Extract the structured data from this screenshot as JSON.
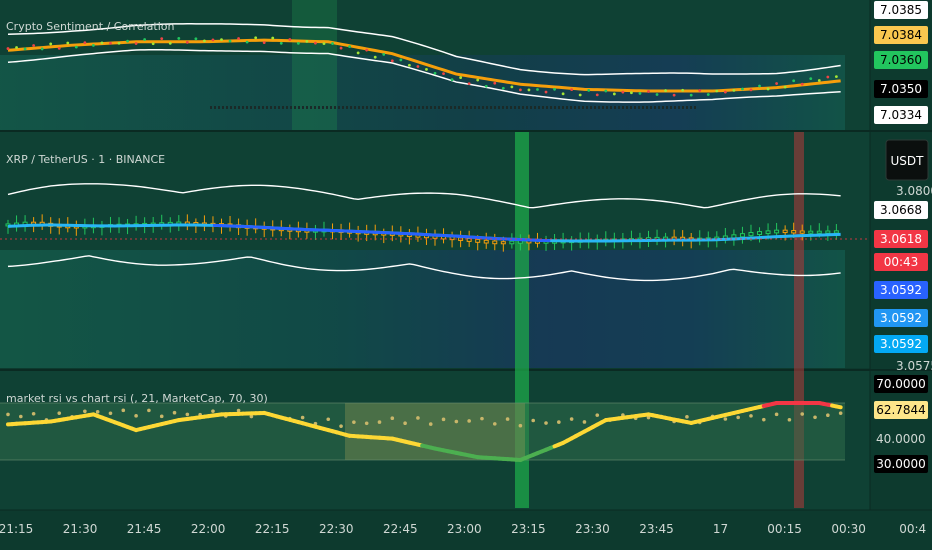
{
  "panes": {
    "top": {
      "title": "Crypto Sentiment / Correlation",
      "price_pills": [
        {
          "text": "7.0385",
          "bg": "#ffffff",
          "fg": "#000000"
        },
        {
          "text": "7.0384",
          "bg": "#f9c74f",
          "fg": "#000000"
        },
        {
          "text": "7.0360",
          "bg": "#22c55e",
          "fg": "#000000"
        },
        {
          "text": "7.0350",
          "bg": "#000000",
          "fg": "#ffffff"
        },
        {
          "text": "7.0334",
          "bg": "#ffffff",
          "fg": "#000000"
        }
      ]
    },
    "main": {
      "title": "XRP / TetherUS · 1 · BINANCE",
      "currency_button": "USDT",
      "axis_top_label": "3.0800",
      "axis_bottom_label": "3.0575",
      "price_pills": [
        {
          "text": "3.0668",
          "bg": "#ffffff",
          "fg": "#000000"
        },
        {
          "text": "3.0618",
          "bg": "#f23645",
          "fg": "#ffffff"
        },
        {
          "text": "00:43",
          "bg": "#f23645",
          "fg": "#ffffff"
        },
        {
          "text": "3.0592",
          "bg": "#2962ff",
          "fg": "#ffffff"
        },
        {
          "text": "3.0592",
          "bg": "#2196f3",
          "fg": "#ffffff"
        },
        {
          "text": "3.0592",
          "bg": "#03a9f4",
          "fg": "#ffffff"
        }
      ]
    },
    "rsi": {
      "title": "market rsi vs chart rsi (, 21, MarketCap, 70, 30)",
      "axis_label": "40.0000",
      "price_pills": [
        {
          "text": "70.0000",
          "bg": "#000000",
          "fg": "#ffffff"
        },
        {
          "text": "62.7844",
          "bg": "#fde68a",
          "fg": "#000000"
        },
        {
          "text": "30.0000",
          "bg": "#000000",
          "fg": "#ffffff"
        }
      ]
    }
  },
  "time_axis": {
    "labels": [
      "21:15",
      "21:30",
      "21:45",
      "22:00",
      "22:15",
      "22:30",
      "22:45",
      "23:00",
      "23:15",
      "23:30",
      "23:45",
      "17",
      "00:15",
      "00:30",
      "00:4"
    ]
  },
  "chart_data": [
    {
      "type": "line",
      "title": "Crypto Sentiment / Correlation",
      "x_minutes_from_2115": [
        0,
        15,
        30,
        45,
        60,
        75,
        90,
        105,
        120,
        135,
        150,
        165,
        180,
        195
      ],
      "series": [
        {
          "values": [
            7.0378,
            7.038,
            7.0382,
            7.0383,
            7.0383,
            7.0381,
            7.0372,
            7.036,
            7.0354,
            7.0352,
            7.0352,
            7.0352,
            7.0356,
            7.0362
          ]
        },
        {
          "values": [
            7.0377,
            7.038,
            7.0382,
            7.0382,
            7.0383,
            7.0382,
            7.0375,
            7.0363,
            7.0357,
            7.0354,
            7.0353,
            7.0353,
            7.0355,
            7.0359
          ]
        }
      ],
      "colors": {
        "price": "#9ccc65",
        "ma": "#f59e0b",
        "bands": "#ffffff"
      }
    },
    {
      "type": "line",
      "title": "XRP / TetherUS · 1 · BINANCE",
      "x_minutes_from_2115": [
        0,
        5,
        10,
        15,
        20,
        25,
        30,
        35,
        40,
        45,
        50,
        55,
        60,
        65,
        70,
        75,
        80,
        85,
        90,
        95,
        100,
        105,
        110,
        115,
        120,
        125,
        130,
        135,
        140,
        145,
        150,
        155,
        160,
        165,
        170,
        175,
        180,
        185,
        190,
        195
      ],
      "series": [
        {
          "values": [
            3.0715,
            3.073,
            3.0712,
            3.07,
            3.0705,
            3.0712,
            3.0716,
            3.0722,
            3.0728,
            3.072,
            3.0715,
            3.07,
            3.0692,
            3.068,
            3.0672,
            3.0676,
            3.0665,
            3.0655,
            3.065,
            3.064,
            3.063,
            3.0618,
            3.0602,
            3.059,
            3.06,
            3.0595,
            3.06,
            3.0605,
            3.061,
            3.0612,
            3.062,
            3.0625,
            3.0615,
            3.062,
            3.064,
            3.066,
            3.0672,
            3.0665,
            3.0665,
            3.0668
          ]
        },
        {
          "values": [
            3.0705,
            3.0712,
            3.0715,
            3.0712,
            3.0709,
            3.0708,
            3.071,
            3.0712,
            3.0715,
            3.0714,
            3.071,
            3.0705,
            3.0698,
            3.069,
            3.0683,
            3.0678,
            3.0672,
            3.0666,
            3.066,
            3.0653,
            3.0645,
            3.0638,
            3.0628,
            3.062,
            3.0614,
            3.0608,
            3.0605,
            3.0604,
            3.0604,
            3.0606,
            3.0608,
            3.061,
            3.061,
            3.0612,
            3.0618,
            3.0626,
            3.0634,
            3.064,
            3.0645,
            3.065
          ]
        }
      ],
      "colors": {
        "price": "#f59e0b",
        "ma_dark": "#2962ff",
        "ma_light": "#29b6f6",
        "bands": "#ffffff"
      }
    },
    {
      "type": "line",
      "title": "market rsi vs chart rsi (, 21, MarketCap, 70, 30)",
      "x_minutes_from_2115": [
        0,
        10,
        20,
        30,
        40,
        50,
        60,
        70,
        80,
        90,
        100,
        110,
        120,
        130,
        140,
        150,
        160,
        170,
        180,
        190,
        195
      ],
      "series": [
        {
          "values": [
            55,
            57,
            62,
            51,
            58,
            62,
            63,
            55,
            47,
            45,
            38,
            32,
            30,
            42,
            58,
            62,
            56,
            63,
            70,
            70,
            67
          ]
        },
        {
          "values": [
            62,
            60,
            64,
            63,
            62,
            63,
            62,
            58,
            55,
            58,
            57,
            58,
            56,
            57,
            60,
            60,
            58,
            60,
            60,
            61,
            62
          ]
        }
      ],
      "levels": [
        70,
        30
      ],
      "colors": {
        "chart_rsi": "#fdd835",
        "overbought": "#f23645",
        "oversold": "#4caf50",
        "market_rsi": "#c8b66a",
        "band": "#f9e27a"
      }
    }
  ]
}
